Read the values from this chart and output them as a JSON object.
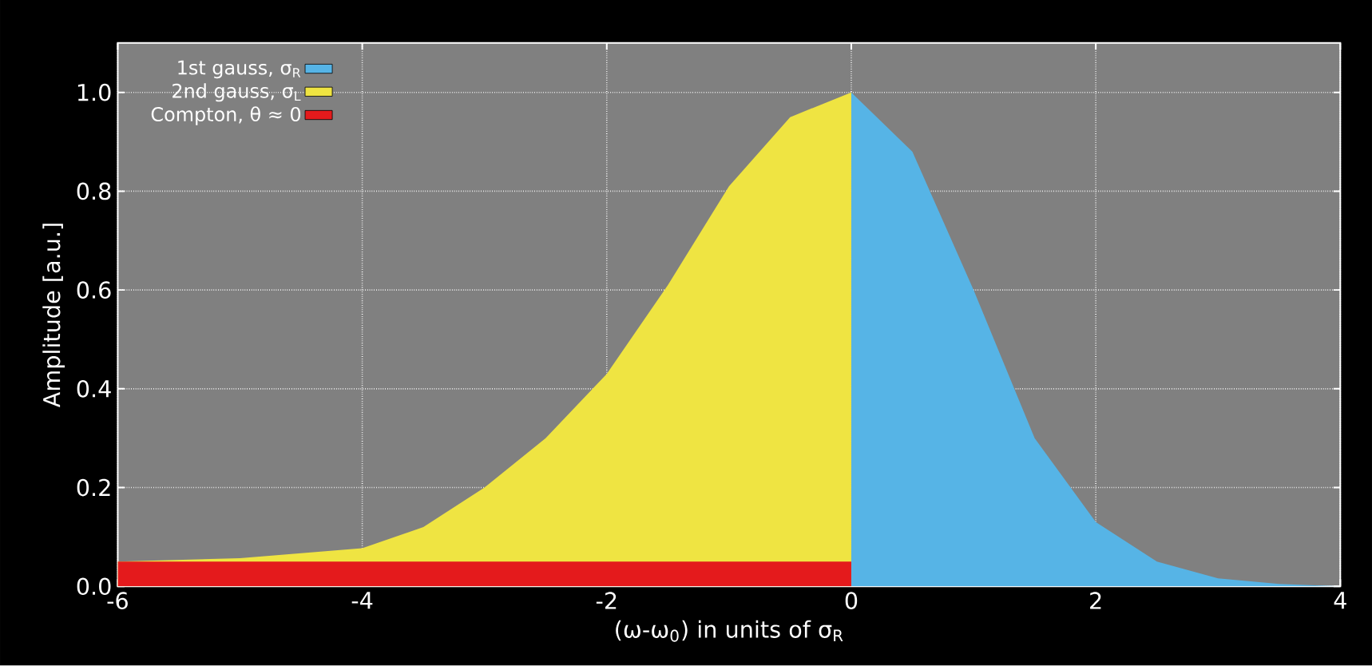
{
  "chart_data": {
    "type": "area",
    "xlabel": "(ω-ω$_{0}$) in units of σ$_{R}$",
    "ylabel": "Amplitude [a.u.]",
    "xlim": [
      -6,
      4
    ],
    "ylim": [
      0,
      1.1
    ],
    "xticks": [
      -6,
      -4,
      -2,
      0,
      2,
      4
    ],
    "yticks": [
      {
        "value": 0,
        "label": "0.0"
      },
      0.2,
      0.4,
      0.6,
      0.8,
      {
        "value": 1,
        "label": "1.0"
      }
    ],
    "grid": true,
    "legend": "top left",
    "series": [
      {
        "name": "1st gauss, σ$_{R}$",
        "color": "#56b4e6",
        "x": [
          0,
          0.5,
          1,
          1.5,
          2,
          2.5,
          3,
          3.5,
          4
        ],
        "values": [
          1.0,
          0.88,
          0.6,
          0.3,
          0.13,
          0.05,
          0.016,
          0.005,
          0
        ]
      },
      {
        "name": "2nd gauss, σ$_{L}$",
        "color": "#efe442",
        "x": [
          -6,
          -5,
          -4,
          -3.5,
          -3,
          -2.5,
          -2,
          -1.5,
          -1,
          -0.5,
          0
        ],
        "values": [
          0.05,
          0.057,
          0.077,
          0.12,
          0.2,
          0.3,
          0.43,
          0.61,
          0.81,
          0.95,
          1.0
        ]
      },
      {
        "name": "Compton, θ ≈ 0",
        "color": "#e41a1c",
        "x": [
          -6,
          0
        ],
        "values": [
          0.05,
          0.05
        ]
      }
    ]
  }
}
